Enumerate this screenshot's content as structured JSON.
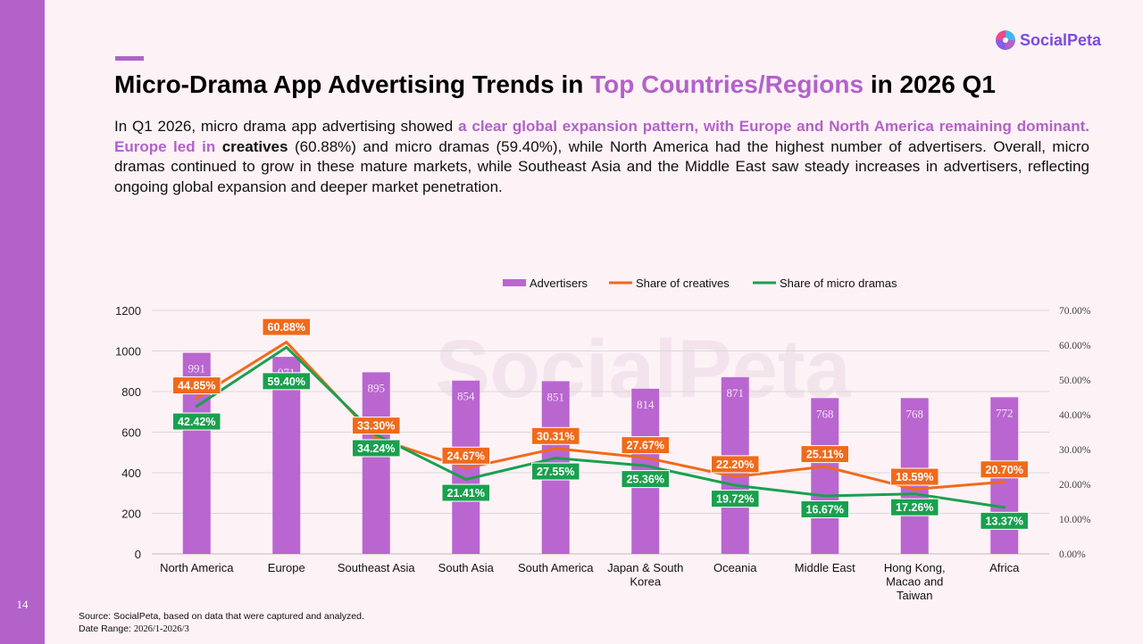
{
  "page": {
    "number": "14",
    "title_parts": [
      "Micro-Drama App Advertising Trends in ",
      "Top Countries/Regions",
      " in 2026 Q1"
    ],
    "summary_parts": [
      "In Q1 2026, micro drama app advertising showed ",
      "a clear global expansion pattern, with Europe and North America remaining dominant. Europe led in ",
      "creatives",
      " (60.88%) and micro dramas (59.40%), while North America had the highest number of advertisers. Overall, micro dramas continued to grow in these mature markets, while Southeast Asia and the Middle East saw steady increases in advertisers, reflecting ongoing global expansion and deeper market penetration."
    ],
    "logo": {
      "name": "SocialPeta",
      "icon": "socialpeta-logo-icon"
    },
    "watermark": "SocialPeta",
    "source": {
      "text": "Source: SocialPeta, based on data that were captured and analyzed.",
      "date_label": "Date Range: ",
      "date_value": "2026/1-2026/3"
    },
    "colors": {
      "accent": "#b262c9",
      "bar": "#b966d0",
      "creatives": "#f06a1a",
      "micro": "#1aa04e",
      "logo": "#7b4be0"
    }
  },
  "chart_data": {
    "type": "bar",
    "categories": [
      "North America",
      "Europe",
      "Southeast Asia",
      "South Asia",
      "South America",
      "Japan & South Korea",
      "Oceania",
      "Middle East",
      "Hong Kong, Macao and Taiwan",
      "Africa"
    ],
    "series": [
      {
        "name": "Advertisers",
        "type": "bar",
        "axis": "left",
        "values": [
          991,
          971,
          895,
          854,
          851,
          814,
          871,
          768,
          768,
          772
        ],
        "labels": [
          "991",
          "971",
          "895",
          "854",
          "851",
          "814",
          "871",
          "768",
          "768",
          "772"
        ]
      },
      {
        "name": "Share of creatives",
        "type": "line",
        "axis": "right",
        "values": [
          44.85,
          60.88,
          33.3,
          24.67,
          30.31,
          27.67,
          22.2,
          25.11,
          18.59,
          20.7
        ],
        "labels": [
          "44.85%",
          "60.88%",
          "33.30%",
          "24.67%",
          "30.31%",
          "27.67%",
          "22.20%",
          "25.11%",
          "18.59%",
          "20.70%"
        ]
      },
      {
        "name": "Share of micro dramas",
        "type": "line",
        "axis": "right",
        "values": [
          42.42,
          59.4,
          34.24,
          21.41,
          27.55,
          25.36,
          19.72,
          16.67,
          17.26,
          13.37
        ],
        "labels": [
          "42.42%",
          "59.40%",
          "34.24%",
          "21.41%",
          "27.55%",
          "25.36%",
          "19.72%",
          "16.67%",
          "17.26%",
          "13.37%"
        ]
      }
    ],
    "y_left": {
      "range": [
        0,
        1200
      ],
      "ticks": [
        "0",
        "200",
        "400",
        "600",
        "800",
        "1000",
        "1200"
      ]
    },
    "y_right": {
      "range": [
        0,
        70
      ],
      "ticks": [
        "0.00%",
        "10.00%",
        "20.00%",
        "30.00%",
        "40.00%",
        "50.00%",
        "60.00%",
        "70.00%"
      ]
    },
    "grid": true,
    "legend": "top-center"
  }
}
